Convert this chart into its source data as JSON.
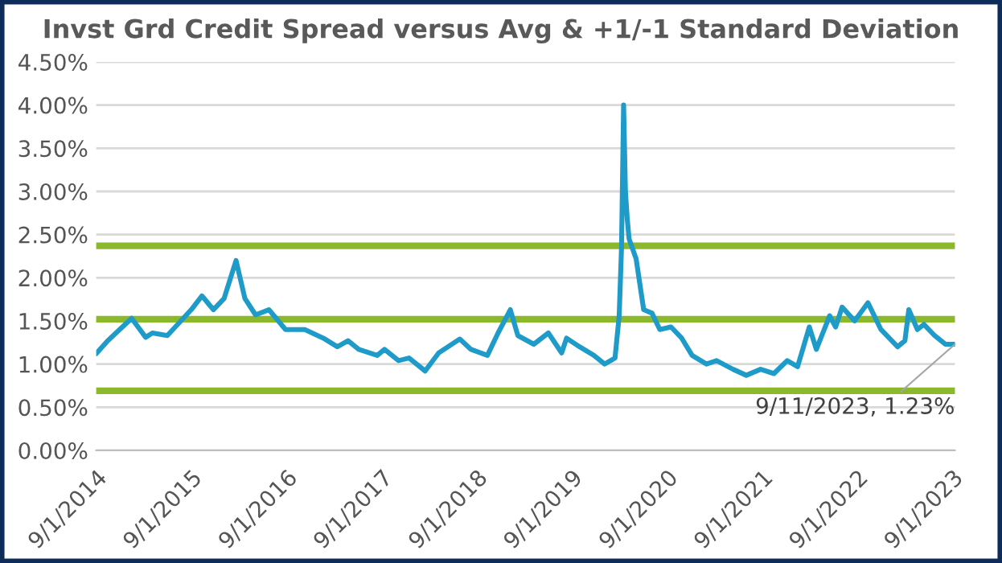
{
  "chart_data": {
    "type": "line",
    "title": "Invst Grd Credit Spread versus Avg & +1/-1 Standard Deviation",
    "x": [
      "2014-09-01",
      "2014-10-15",
      "2015-01-15",
      "2015-03-10",
      "2015-04-05",
      "2015-06-01",
      "2015-09-01",
      "2015-10-12",
      "2015-11-25",
      "2016-01-05",
      "2016-02-20",
      "2016-03-25",
      "2016-05-05",
      "2016-06-25",
      "2016-08-28",
      "2016-11-10",
      "2017-01-20",
      "2017-03-15",
      "2017-04-25",
      "2017-06-05",
      "2017-08-15",
      "2017-09-12",
      "2017-11-05",
      "2017-12-15",
      "2018-02-15",
      "2018-04-08",
      "2018-06-28",
      "2018-08-10",
      "2018-10-12",
      "2018-11-22",
      "2019-01-08",
      "2019-02-06",
      "2019-04-08",
      "2019-06-03",
      "2019-07-24",
      "2019-08-12",
      "2019-10-01",
      "2019-11-25",
      "2020-01-05",
      "2020-02-14",
      "2020-03-01",
      "2020-03-10",
      "2020-03-18",
      "2020-03-25",
      "2020-04-01",
      "2020-04-08",
      "2020-05-05",
      "2020-06-03",
      "2020-07-05",
      "2020-08-04",
      "2020-09-16",
      "2020-10-27",
      "2020-12-06",
      "2021-01-30",
      "2021-03-10",
      "2021-05-12",
      "2021-07-02",
      "2021-08-26",
      "2021-10-16",
      "2021-12-06",
      "2022-01-15",
      "2022-03-01",
      "2022-03-28",
      "2022-05-18",
      "2022-06-10",
      "2022-07-05",
      "2022-08-22",
      "2022-10-12",
      "2022-12-01",
      "2023-02-03",
      "2023-03-03",
      "2023-03-18",
      "2023-04-20",
      "2023-05-15",
      "2023-06-25",
      "2023-08-05",
      "2023-09-11"
    ],
    "series": [
      {
        "color": "#1e9bc8",
        "values": [
          1.12,
          1.27,
          1.53,
          1.31,
          1.36,
          1.33,
          1.63,
          1.79,
          1.63,
          1.76,
          2.2,
          1.76,
          1.57,
          1.63,
          1.4,
          1.4,
          1.3,
          1.2,
          1.27,
          1.17,
          1.1,
          1.17,
          1.04,
          1.07,
          0.92,
          1.13,
          1.29,
          1.17,
          1.1,
          1.36,
          1.63,
          1.33,
          1.23,
          1.36,
          1.13,
          1.3,
          1.2,
          1.1,
          1.0,
          1.07,
          1.56,
          2.35,
          4.0,
          3.0,
          2.68,
          2.45,
          2.22,
          1.63,
          1.59,
          1.4,
          1.43,
          1.3,
          1.1,
          1.0,
          1.04,
          0.94,
          0.87,
          0.94,
          0.89,
          1.04,
          0.97,
          1.43,
          1.17,
          1.56,
          1.43,
          1.66,
          1.5,
          1.71,
          1.4,
          1.2,
          1.27,
          1.63,
          1.4,
          1.46,
          1.33,
          1.23,
          1.23
        ]
      }
    ],
    "xlim": [
      "2014-09-01",
      "2023-09-11"
    ],
    "xticks": [
      {
        "value": "2014-09-01",
        "label": "9/1/2014"
      },
      {
        "value": "2015-09-01",
        "label": "9/1/2015"
      },
      {
        "value": "2016-09-01",
        "label": "9/1/2016"
      },
      {
        "value": "2017-09-01",
        "label": "9/1/2017"
      },
      {
        "value": "2018-09-01",
        "label": "9/1/2018"
      },
      {
        "value": "2019-09-01",
        "label": "9/1/2019"
      },
      {
        "value": "2020-09-01",
        "label": "9/1/2020"
      },
      {
        "value": "2021-09-01",
        "label": "9/1/2021"
      },
      {
        "value": "2022-09-01",
        "label": "9/1/2022"
      },
      {
        "value": "2023-09-01",
        "label": "9/1/2023"
      }
    ],
    "ylim": [
      0,
      4.5
    ],
    "yticks": [
      {
        "value": 0,
        "label": "0.00%"
      },
      {
        "value": 0.5,
        "label": "0.50%"
      },
      {
        "value": 1.0,
        "label": "1.00%"
      },
      {
        "value": 1.5,
        "label": "1.50%"
      },
      {
        "value": 2.0,
        "label": "2.00%"
      },
      {
        "value": 2.5,
        "label": "2.50%"
      },
      {
        "value": 3.0,
        "label": "3.00%"
      },
      {
        "value": 3.5,
        "label": "3.50%"
      },
      {
        "value": 4.0,
        "label": "4.00%"
      },
      {
        "value": 4.5,
        "label": "4.50%"
      }
    ],
    "ref_lines": [
      {
        "axis": "y",
        "value": 2.37,
        "color": "#8cb82b"
      },
      {
        "axis": "y",
        "value": 1.52,
        "color": "#8cb82b"
      },
      {
        "axis": "y",
        "value": 0.69,
        "color": "#8cb82b"
      }
    ],
    "annotations": [
      {
        "text": "9/11/2023, 1.23%",
        "x": "2023-09-11",
        "y": 1.23
      }
    ],
    "grid": "y",
    "legend": false
  }
}
